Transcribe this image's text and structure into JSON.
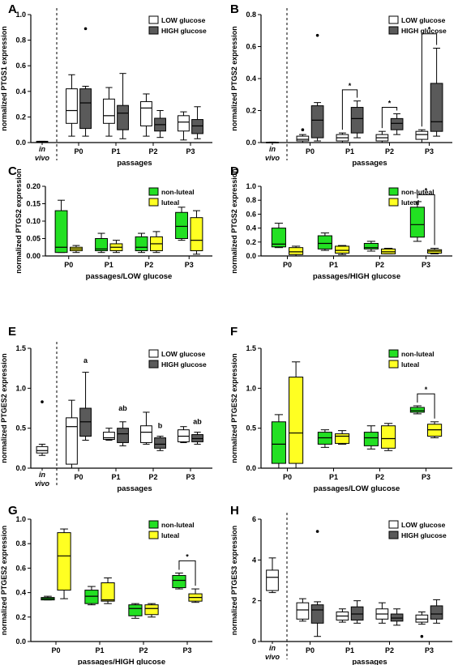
{
  "colors": {
    "low": "#ffffff",
    "high": "#5a5a5a",
    "nonluteal": "#22e022",
    "luteal": "#ffff22"
  },
  "chart_data": [
    {
      "type": "box",
      "panel_letter": "A",
      "ylabel": "normalized PTGS1 expression",
      "xlabel": "passages",
      "ylim": [
        0,
        1.0
      ],
      "yticks": [
        "0.0",
        "0.2",
        "0.4",
        "0.6",
        "0.8",
        "1.0"
      ],
      "yticks_values": [
        0,
        0.2,
        0.4,
        0.6,
        0.8,
        1.0
      ],
      "invivo": true,
      "invivo_text": [
        "in",
        "vivo"
      ],
      "categories": [
        "P0",
        "P1",
        "P2",
        "P3"
      ],
      "legend": [
        "LOW glucose",
        "HIGH glucose"
      ],
      "series_colors": [
        "low",
        "high"
      ],
      "series": [
        {
          "name": "LOW glucose",
          "boxes": [
            [
              0.05,
              0.15,
              0.25,
              0.42,
              0.53
            ],
            [
              0.05,
              0.15,
              0.21,
              0.34,
              0.43
            ],
            [
              0.05,
              0.13,
              0.27,
              0.32,
              0.38
            ],
            [
              0.02,
              0.09,
              0.16,
              0.21,
              0.24
            ]
          ],
          "outliers": [
            [],
            [],
            [],
            []
          ]
        },
        {
          "name": "HIGH glucose",
          "boxes": [
            [
              0.05,
              0.11,
              0.31,
              0.42,
              0.44
            ],
            [
              0.03,
              0.1,
              0.23,
              0.29,
              0.54
            ],
            [
              0.04,
              0.09,
              0.14,
              0.19,
              0.25
            ],
            [
              0.03,
              0.07,
              0.13,
              0.18,
              0.28
            ]
          ],
          "outliers": [
            [
              0.89
            ],
            [],
            [],
            []
          ]
        }
      ],
      "invivo_box": {
        "whisker_low": 0.0,
        "q1": 0.0,
        "median": 0.005,
        "q3": 0.01,
        "whisker_high": 0.01,
        "outliers": []
      },
      "annotations": []
    },
    {
      "type": "box",
      "panel_letter": "B",
      "ylabel": "normalized PTGS2 expression",
      "xlabel": "passages",
      "ylim": [
        0,
        0.8
      ],
      "yticks": [
        "0.0",
        "0.2",
        "0.4",
        "0.6",
        "0.8"
      ],
      "yticks_values": [
        0,
        0.2,
        0.4,
        0.6,
        0.8
      ],
      "invivo": true,
      "invivo_text": [
        "in",
        "vivo"
      ],
      "categories": [
        "P0",
        "P1",
        "P2",
        "P3"
      ],
      "legend": [
        "LOW glucose",
        "HIGH glucose"
      ],
      "series_colors": [
        "low",
        "high"
      ],
      "series": [
        {
          "name": "LOW glucose",
          "boxes": [
            [
              0.0,
              0.01,
              0.02,
              0.04,
              0.05
            ],
            [
              0.0,
              0.01,
              0.03,
              0.05,
              0.06
            ],
            [
              0.0,
              0.01,
              0.03,
              0.05,
              0.07
            ],
            [
              0.0,
              0.02,
              0.05,
              0.07,
              0.08
            ]
          ],
          "outliers": [
            [
              0.08
            ],
            [],
            [],
            []
          ]
        },
        {
          "name": "HIGH glucose",
          "boxes": [
            [
              0.01,
              0.03,
              0.14,
              0.23,
              0.25
            ],
            [
              0.03,
              0.06,
              0.15,
              0.22,
              0.26
            ],
            [
              0.05,
              0.08,
              0.12,
              0.15,
              0.18
            ],
            [
              0.04,
              0.07,
              0.13,
              0.37,
              0.59
            ]
          ],
          "outliers": [
            [
              0.67
            ],
            [],
            [],
            []
          ]
        }
      ],
      "invivo_box": {
        "whisker_low": 0.0,
        "q1": 0.0,
        "median": 0.001,
        "q3": 0.002,
        "whisker_high": 0.003,
        "outliers": []
      },
      "annotations": [
        {
          "cat": 1,
          "y": 0.33,
          "text": "*"
        },
        {
          "cat": 2,
          "y": 0.22,
          "text": "*"
        },
        {
          "cat": 3,
          "y": 0.68,
          "text": "*"
        }
      ]
    },
    {
      "type": "box",
      "panel_letter": "C",
      "ylabel": "normalized PTGS2 expression",
      "xlabel": "passages/LOW glucose",
      "ylim": [
        0,
        0.2
      ],
      "yticks": [
        "0.00",
        "0.05",
        "0.10",
        "0.15",
        "0.20"
      ],
      "yticks_values": [
        0,
        0.05,
        0.1,
        0.15,
        0.2
      ],
      "invivo": false,
      "categories": [
        "P0",
        "P1",
        "P2",
        "P3"
      ],
      "legend": [
        "non-luteal",
        "luteal"
      ],
      "series_colors": [
        "nonluteal",
        "luteal"
      ],
      "series": [
        {
          "name": "non-luteal",
          "boxes": [
            [
              0.01,
              0.01,
              0.025,
              0.13,
              0.16
            ],
            [
              0.01,
              0.015,
              0.02,
              0.05,
              0.065
            ],
            [
              0.01,
              0.015,
              0.025,
              0.055,
              0.065
            ],
            [
              0.045,
              0.05,
              0.085,
              0.125,
              0.14
            ]
          ],
          "outliers": [
            [],
            [],
            [],
            []
          ]
        },
        {
          "name": "luteal",
          "boxes": [
            [
              0.01,
              0.015,
              0.02,
              0.025,
              0.03
            ],
            [
              0.01,
              0.015,
              0.025,
              0.035,
              0.045
            ],
            [
              0.01,
              0.015,
              0.035,
              0.055,
              0.07
            ],
            [
              0.005,
              0.015,
              0.045,
              0.11,
              0.13
            ]
          ],
          "outliers": [
            [],
            [],
            [],
            []
          ]
        }
      ],
      "annotations": []
    },
    {
      "type": "box",
      "panel_letter": "D",
      "ylabel": "normalized PTGS2 expression",
      "xlabel": "passages/HIGH glucose",
      "ylim": [
        0,
        1.0
      ],
      "yticks": [
        "0.0",
        "0.2",
        "0.4",
        "0.6",
        "0.8",
        "1.0"
      ],
      "yticks_values": [
        0,
        0.2,
        0.4,
        0.6,
        0.8,
        1.0
      ],
      "invivo": false,
      "categories": [
        "P0",
        "P1",
        "P2",
        "P3"
      ],
      "legend": [
        "non-luteal",
        "luteal"
      ],
      "series_colors": [
        "nonluteal",
        "luteal"
      ],
      "series": [
        {
          "name": "non-luteal",
          "boxes": [
            [
              0.12,
              0.13,
              0.17,
              0.4,
              0.47
            ],
            [
              0.08,
              0.1,
              0.18,
              0.29,
              0.33
            ],
            [
              0.07,
              0.1,
              0.12,
              0.18,
              0.21
            ],
            [
              0.21,
              0.27,
              0.45,
              0.7,
              0.78
            ]
          ],
          "outliers": [
            [],
            [],
            [],
            []
          ]
        },
        {
          "name": "luteal",
          "boxes": [
            [
              0.0,
              0.02,
              0.06,
              0.12,
              0.14
            ],
            [
              0.02,
              0.04,
              0.08,
              0.14,
              0.15
            ],
            [
              0.03,
              0.03,
              0.06,
              0.1,
              0.11
            ],
            [
              0.03,
              0.04,
              0.07,
              0.09,
              0.11
            ]
          ],
          "outliers": [
            [],
            [],
            [],
            []
          ]
        }
      ],
      "annotations": [
        {
          "cat": 3,
          "y": 0.88,
          "text": "*"
        }
      ]
    },
    {
      "type": "box",
      "panel_letter": "E",
      "ylabel": "normalized PTGES2 expression",
      "xlabel": "passages",
      "ylim": [
        0,
        1.5
      ],
      "yticks": [
        "0.0",
        "0.5",
        "1.0",
        "1.5"
      ],
      "yticks_values": [
        0,
        0.5,
        1.0,
        1.5
      ],
      "invivo": true,
      "invivo_text": [
        "in",
        "vivo"
      ],
      "categories": [
        "P0",
        "P1",
        "P2",
        "P3"
      ],
      "legend": [
        "LOW glucose",
        "HIGH glucose"
      ],
      "series_colors": [
        "low",
        "high"
      ],
      "series": [
        {
          "name": "LOW glucose",
          "boxes": [
            [
              0.0,
              0.05,
              0.52,
              0.63,
              0.85
            ],
            [
              0.35,
              0.36,
              0.38,
              0.45,
              0.5
            ],
            [
              0.3,
              0.32,
              0.45,
              0.53,
              0.7
            ],
            [
              0.32,
              0.33,
              0.4,
              0.48,
              0.52
            ]
          ],
          "outliers": [
            [],
            [],
            [],
            []
          ]
        },
        {
          "name": "HIGH glucose",
          "boxes": [
            [
              0.35,
              0.4,
              0.58,
              0.75,
              1.2
            ],
            [
              0.28,
              0.32,
              0.43,
              0.5,
              0.58
            ],
            [
              0.22,
              0.25,
              0.3,
              0.38,
              0.4
            ],
            [
              0.3,
              0.33,
              0.37,
              0.42,
              0.45
            ]
          ],
          "outliers": [
            [],
            [],
            [],
            []
          ]
        }
      ],
      "invivo_box": {
        "whisker_low": 0.16,
        "q1": 0.19,
        "median": 0.22,
        "q3": 0.27,
        "whisker_high": 0.3,
        "outliers": [
          0.83
        ]
      },
      "annotations": [
        {
          "cat": 0,
          "series": 1,
          "y": 1.32,
          "text": "a"
        },
        {
          "cat": 1,
          "series": 1,
          "y": 0.72,
          "text": "ab"
        },
        {
          "cat": 2,
          "series": 1,
          "y": 0.5,
          "text": "b"
        },
        {
          "cat": 3,
          "series": 1,
          "y": 0.55,
          "text": "ab"
        }
      ]
    },
    {
      "type": "box",
      "panel_letter": "F",
      "ylabel": "normalized PTGES2 expression",
      "xlabel": "passages/LOW glucose",
      "ylim": [
        0,
        1.5
      ],
      "yticks": [
        "0.0",
        "0.5",
        "1.0",
        "1.5"
      ],
      "yticks_values": [
        0,
        0.5,
        1.0,
        1.5
      ],
      "invivo": false,
      "categories": [
        "P0",
        "P1",
        "P2",
        "P3"
      ],
      "legend": [
        "non-luteal",
        "luteal"
      ],
      "series_colors": [
        "nonluteal",
        "luteal"
      ],
      "series": [
        {
          "name": "non-luteal",
          "boxes": [
            [
              0.0,
              0.06,
              0.3,
              0.58,
              0.67
            ],
            [
              0.26,
              0.3,
              0.38,
              0.45,
              0.48
            ],
            [
              0.24,
              0.28,
              0.38,
              0.45,
              0.53
            ],
            [
              0.68,
              0.7,
              0.72,
              0.76,
              0.78
            ]
          ],
          "outliers": [
            [],
            [],
            [],
            []
          ]
        },
        {
          "name": "luteal",
          "boxes": [
            [
              0.0,
              0.06,
              0.44,
              1.14,
              1.33
            ],
            [
              0.3,
              0.31,
              0.4,
              0.43,
              0.47
            ],
            [
              0.22,
              0.25,
              0.37,
              0.53,
              0.56
            ],
            [
              0.38,
              0.4,
              0.48,
              0.55,
              0.58
            ]
          ],
          "outliers": [
            [],
            [],
            [],
            []
          ]
        }
      ],
      "annotations": [
        {
          "cat": 3,
          "y": 0.93,
          "text": "*"
        }
      ]
    },
    {
      "type": "box",
      "panel_letter": "G",
      "ylabel": "normalized PTGES2 expression",
      "xlabel": "passages/HIGH glucose",
      "ylim": [
        0,
        1.0
      ],
      "yticks": [
        "0.0",
        "0.2",
        "0.4",
        "0.6",
        "0.8",
        "1.0"
      ],
      "yticks_values": [
        0,
        0.2,
        0.4,
        0.6,
        0.8,
        1.0
      ],
      "invivo": false,
      "categories": [
        "P0",
        "P1",
        "P2",
        "P3"
      ],
      "legend": [
        "non-luteal",
        "luteal"
      ],
      "series_colors": [
        "nonluteal",
        "luteal"
      ],
      "series": [
        {
          "name": "non-luteal",
          "boxes": [
            [
              0.34,
              0.34,
              0.35,
              0.36,
              0.37
            ],
            [
              0.3,
              0.31,
              0.37,
              0.42,
              0.45
            ],
            [
              0.19,
              0.21,
              0.27,
              0.3,
              0.31
            ],
            [
              0.43,
              0.44,
              0.5,
              0.54,
              0.56
            ]
          ],
          "outliers": [
            [],
            [],
            [],
            []
          ]
        },
        {
          "name": "luteal",
          "boxes": [
            [
              0.35,
              0.42,
              0.7,
              0.89,
              0.92
            ],
            [
              0.31,
              0.33,
              0.34,
              0.48,
              0.52
            ],
            [
              0.2,
              0.22,
              0.27,
              0.3,
              0.31
            ],
            [
              0.32,
              0.33,
              0.36,
              0.39,
              0.43
            ]
          ],
          "outliers": [
            [],
            [],
            [],
            []
          ]
        }
      ],
      "annotations": [
        {
          "cat": 3,
          "y": 0.66,
          "text": "*"
        }
      ]
    },
    {
      "type": "box",
      "panel_letter": "H",
      "ylabel": "normalized PTGES3 expression",
      "xlabel": "passages",
      "ylim": [
        0,
        6
      ],
      "yticks": [
        "0",
        "2",
        "4",
        "6"
      ],
      "yticks_values": [
        0,
        2,
        4,
        6
      ],
      "invivo": true,
      "invivo_text": [
        "in",
        "vivo"
      ],
      "categories": [
        "P0",
        "P1",
        "P2",
        "P3"
      ],
      "legend": [
        "LOW glucose",
        "HIGH glucose"
      ],
      "series_colors": [
        "low",
        "high"
      ],
      "series": [
        {
          "name": "LOW glucose",
          "boxes": [
            [
              1.0,
              1.1,
              1.55,
              1.9,
              2.1
            ],
            [
              0.95,
              1.05,
              1.25,
              1.45,
              1.6
            ],
            [
              0.9,
              1.1,
              1.35,
              1.6,
              1.9
            ],
            [
              0.85,
              0.95,
              1.1,
              1.3,
              1.45
            ]
          ],
          "outliers": [
            [],
            [],
            [],
            [
              0.25
            ]
          ]
        },
        {
          "name": "HIGH glucose",
          "boxes": [
            [
              0.25,
              0.9,
              1.55,
              1.8,
              1.95
            ],
            [
              0.9,
              1.05,
              1.35,
              1.7,
              2.0
            ],
            [
              0.8,
              1.0,
              1.15,
              1.35,
              1.6
            ],
            [
              0.9,
              1.1,
              1.35,
              1.75,
              2.05
            ]
          ],
          "outliers": [
            [
              5.4
            ],
            [],
            [],
            []
          ]
        }
      ],
      "invivo_box": {
        "whisker_low": 2.4,
        "q1": 2.5,
        "median": 3.15,
        "q3": 3.5,
        "whisker_high": 4.1,
        "outliers": []
      },
      "annotations": []
    }
  ]
}
